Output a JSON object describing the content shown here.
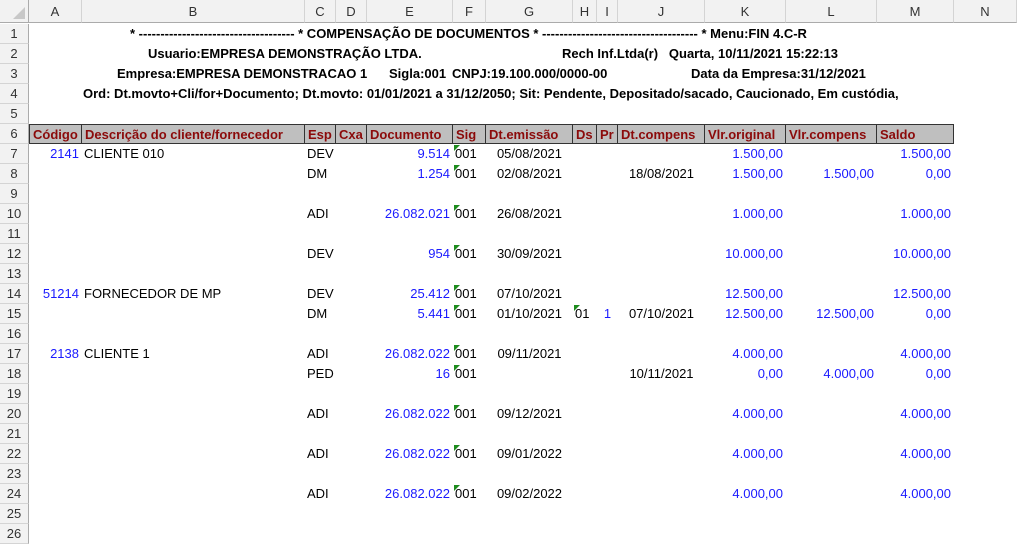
{
  "columns": [
    "A",
    "B",
    "C",
    "D",
    "E",
    "F",
    "G",
    "H",
    "I",
    "J",
    "K",
    "L",
    "M",
    "N"
  ],
  "row_numbers": [
    "1",
    "2",
    "3",
    "4",
    "5",
    "6",
    "7",
    "8",
    "9",
    "10",
    "11",
    "12",
    "13",
    "14",
    "15",
    "16",
    "17",
    "18",
    "19",
    "20",
    "21",
    "22",
    "23",
    "24",
    "25",
    "26"
  ],
  "report_header": {
    "line1": "* ------------------------------------ * COMPENSAÇÃO DE DOCUMENTOS * ------------------------------------ * Menu:FIN 4.C-R",
    "usuario": "Usuario:EMPRESA DEMONSTRAÇÃO LTDA.",
    "rech": "Rech Inf.Ltda(r)   Quarta, 10/11/2021 15:22:13",
    "empresa": "Empresa:EMPRESA DEMONSTRACAO 1",
    "sigla": "Sigla:001",
    "cnpj": "CNPJ:19.100.000/0000-00",
    "data_empresa": "Data da Empresa:31/12/2021",
    "ord": "Ord: Dt.movto+Cli/for+Documento; Dt.movto: 01/01/2021 a 31/12/2050; Sit: Pendente, Depositado/sacado, Caucionado, Em custódia,"
  },
  "table_headers": [
    "Código",
    "Descrição do cliente/fornecedor",
    "Esp",
    "Cxa",
    "Documento",
    "Sig",
    "Dt.emissão",
    "Ds",
    "Pr",
    "Dt.compens",
    "Vlr.original",
    "Vlr.compens",
    "Saldo"
  ],
  "rows": [
    {
      "row": 7,
      "codigo": "2141",
      "descricao": "CLIENTE 010",
      "esp": "DEV",
      "cxa": "",
      "documento": "9.514",
      "sig": "001",
      "dt_emissao": "05/08/2021",
      "ds": "",
      "pr": "",
      "dt_compens": "",
      "vlr_original": "1.500,00",
      "vlr_compens": "",
      "saldo": "1.500,00"
    },
    {
      "row": 8,
      "codigo": "",
      "descricao": "",
      "esp": "DM",
      "cxa": "",
      "documento": "1.254",
      "sig": "001",
      "dt_emissao": "02/08/2021",
      "ds": "",
      "pr": "",
      "dt_compens": "18/08/2021",
      "vlr_original": "1.500,00",
      "vlr_compens": "1.500,00",
      "saldo": "0,00"
    },
    {
      "row": 10,
      "codigo": "",
      "descricao": "",
      "esp": "ADI",
      "cxa": "",
      "documento": "26.082.021",
      "sig": "001",
      "dt_emissao": "26/08/2021",
      "ds": "",
      "pr": "",
      "dt_compens": "",
      "vlr_original": "1.000,00",
      "vlr_compens": "",
      "saldo": "1.000,00"
    },
    {
      "row": 12,
      "codigo": "",
      "descricao": "",
      "esp": "DEV",
      "cxa": "",
      "documento": "954",
      "sig": "001",
      "dt_emissao": "30/09/2021",
      "ds": "",
      "pr": "",
      "dt_compens": "",
      "vlr_original": "10.000,00",
      "vlr_compens": "",
      "saldo": "10.000,00"
    },
    {
      "row": 14,
      "codigo": "51214",
      "descricao": "FORNECEDOR DE MP",
      "esp": "DEV",
      "cxa": "",
      "documento": "25.412",
      "sig": "001",
      "dt_emissao": "07/10/2021",
      "ds": "",
      "pr": "",
      "dt_compens": "",
      "vlr_original": "12.500,00",
      "vlr_compens": "",
      "saldo": "12.500,00"
    },
    {
      "row": 15,
      "codigo": "",
      "descricao": "",
      "esp": "DM",
      "cxa": "",
      "documento": "5.441",
      "sig": "001",
      "dt_emissao": "01/10/2021",
      "ds": "01",
      "pr": "1",
      "dt_compens": "07/10/2021",
      "vlr_original": "12.500,00",
      "vlr_compens": "12.500,00",
      "saldo": "0,00"
    },
    {
      "row": 17,
      "codigo": "2138",
      "descricao": "CLIENTE 1",
      "esp": "ADI",
      "cxa": "",
      "documento": "26.082.022",
      "sig": "001",
      "dt_emissao": "09/11/2021",
      "ds": "",
      "pr": "",
      "dt_compens": "",
      "vlr_original": "4.000,00",
      "vlr_compens": "",
      "saldo": "4.000,00"
    },
    {
      "row": 18,
      "codigo": "",
      "descricao": "",
      "esp": "PED",
      "cxa": "",
      "documento": "16",
      "sig": "001",
      "dt_emissao": "",
      "ds": "",
      "pr": "",
      "dt_compens": "10/11/2021",
      "vlr_original": "0,00",
      "vlr_compens": "4.000,00",
      "saldo": "0,00"
    },
    {
      "row": 20,
      "codigo": "",
      "descricao": "",
      "esp": "ADI",
      "cxa": "",
      "documento": "26.082.022",
      "sig": "001",
      "dt_emissao": "09/12/2021",
      "ds": "",
      "pr": "",
      "dt_compens": "",
      "vlr_original": "4.000,00",
      "vlr_compens": "",
      "saldo": "4.000,00"
    },
    {
      "row": 22,
      "codigo": "",
      "descricao": "",
      "esp": "ADI",
      "cxa": "",
      "documento": "26.082.022",
      "sig": "001",
      "dt_emissao": "09/01/2022",
      "ds": "",
      "pr": "",
      "dt_compens": "",
      "vlr_original": "4.000,00",
      "vlr_compens": "",
      "saldo": "4.000,00"
    },
    {
      "row": 24,
      "codigo": "",
      "descricao": "",
      "esp": "ADI",
      "cxa": "",
      "documento": "26.082.022",
      "sig": "001",
      "dt_emissao": "09/02/2022",
      "ds": "",
      "pr": "",
      "dt_compens": "",
      "vlr_original": "4.000,00",
      "vlr_compens": "",
      "saldo": "4.000,00"
    }
  ],
  "colors": {
    "number_text": "#1a1aff",
    "header_text": "#8b0a0a",
    "header_bg": "#bfbfbf",
    "error_triangle": "#1e8c1e"
  }
}
